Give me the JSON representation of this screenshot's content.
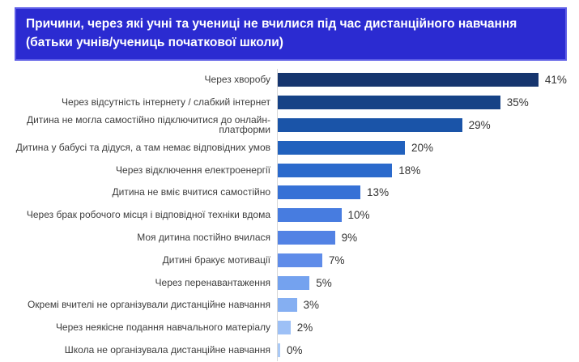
{
  "title": "Причини, через які учні та учениці не вчилися під час дистанційного навчання (батьки учнів/учениць початкової школи)",
  "colors": {
    "banner_bg": "#2B2BD1",
    "banner_border": "#5C5CE6",
    "banner_text": "#FFFFFF",
    "label_text": "#3D3D3D",
    "value_text": "#333333",
    "axis_line": "#D8D8D8",
    "page_bg": "#FFFFFF"
  },
  "chart_data": {
    "type": "bar",
    "orientation": "horizontal",
    "title": "Причини, через які учні та учениці не вчилися під час дистанційного навчання (батьки учнів/учениць початкової школи)",
    "xlabel": "",
    "ylabel": "",
    "xlim": [
      0,
      45
    ],
    "grid": false,
    "legend": false,
    "categories": [
      "Через хворобу",
      "Через відсутність інтернету / слабкий інтернет",
      "Дитина не могла самостійно підключитися до онлайн-платформи",
      "Дитина у бабусі та дідуся, а там немає відповідних умов",
      "Через відключення електроенергії",
      "Дитина не вміє вчитися самостійно",
      "Через брак робочого місця і відповідної техніки вдома",
      "Моя дитина постійно вчилася",
      "Дитині бракує мотивації",
      "Через перенавантаження",
      "Окремі вчителі не організували дистанційне навчання",
      "Через неякісне подання навчального матеріалу",
      "Школа не організувала дистанційне навчання"
    ],
    "values": [
      41,
      35,
      29,
      20,
      18,
      13,
      10,
      9,
      7,
      5,
      3,
      2,
      0
    ],
    "value_labels": [
      "41%",
      "35%",
      "29%",
      "20%",
      "18%",
      "13%",
      "10%",
      "9%",
      "7%",
      "5%",
      "3%",
      "2%",
      "0%"
    ],
    "bar_colors": [
      "#16356E",
      "#164286",
      "#1A54A8",
      "#2161BD",
      "#2B6ACC",
      "#3671D6",
      "#477CE0",
      "#5282E4",
      "#5F8CE9",
      "#74A2EF",
      "#85AFF2",
      "#9DC0F6",
      "#A9C9F6"
    ]
  }
}
